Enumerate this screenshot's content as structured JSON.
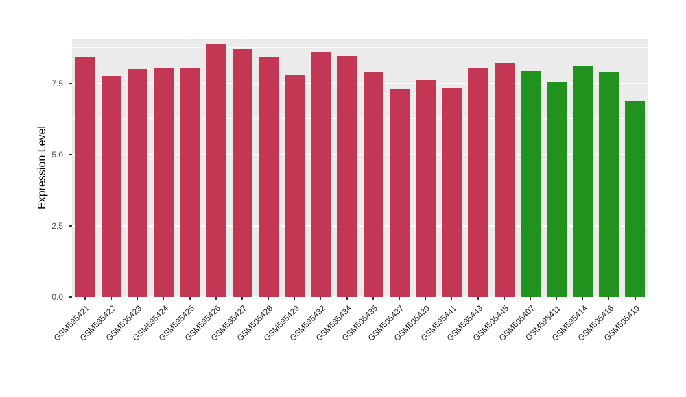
{
  "chart": {
    "ylabel": "Expression Level"
  },
  "chart_data": {
    "type": "bar",
    "title": "",
    "xlabel": "",
    "ylabel": "Expression Level",
    "categories": [
      "GSM595421",
      "GSM595422",
      "GSM595423",
      "GSM595424",
      "GSM595425",
      "GSM595426",
      "GSM595427",
      "GSM595428",
      "GSM595429",
      "GSM595432",
      "GSM595434",
      "GSM595435",
      "GSM595437",
      "GSM595439",
      "GSM595441",
      "GSM595443",
      "GSM595445",
      "GSM595407",
      "GSM595411",
      "GSM595414",
      "GSM595416",
      "GSM595419"
    ],
    "values": [
      8.4,
      7.75,
      8.0,
      8.05,
      8.05,
      8.85,
      8.7,
      8.4,
      7.8,
      8.6,
      8.45,
      7.9,
      7.3,
      7.6,
      7.35,
      8.05,
      8.2,
      7.95,
      7.55,
      8.1,
      7.9,
      6.9
    ],
    "bar_groups": [
      "red",
      "red",
      "red",
      "red",
      "red",
      "red",
      "red",
      "red",
      "red",
      "red",
      "red",
      "red",
      "red",
      "red",
      "red",
      "red",
      "red",
      "green",
      "green",
      "green",
      "green",
      "green"
    ],
    "group_colors": {
      "red": "#C43754",
      "green": "#22921E"
    },
    "ylim": [
      0,
      9.05
    ],
    "yticks": [
      0.0,
      2.5,
      5.0,
      7.5
    ],
    "ytick_labels": [
      "0.0",
      "2.5",
      "5.0",
      "7.5"
    ],
    "minor_yticks": [
      1.25,
      3.75,
      6.25,
      8.75
    ],
    "panel_bg": "#EBEBEB",
    "grid_color": "#FFFFFF",
    "grid": "on",
    "legend_position": "none"
  }
}
